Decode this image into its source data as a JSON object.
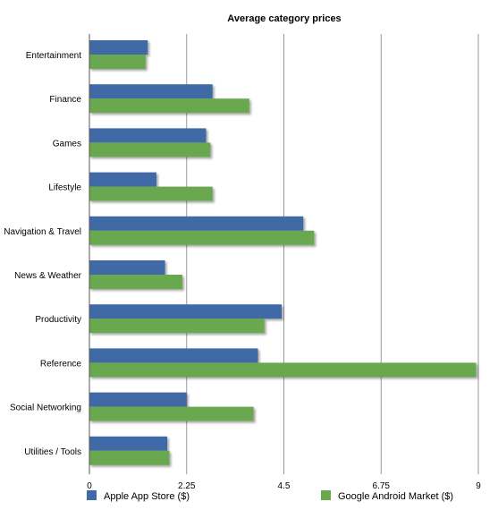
{
  "chart_data": {
    "type": "bar",
    "orientation": "horizontal",
    "title": "Average category prices",
    "xlabel": "",
    "ylabel": "",
    "categories": [
      "Entertainment",
      "Finance",
      "Games",
      "Lifestyle",
      "Navigation & Travel",
      "News & Weather",
      "Productivity",
      "Reference",
      "Social Networking",
      "Utilities / Tools"
    ],
    "series": [
      {
        "name": "Apple App Store ($)",
        "color": "#3f6aa6",
        "values": [
          1.35,
          2.85,
          2.7,
          1.55,
          4.95,
          1.75,
          4.45,
          3.9,
          2.25,
          1.8
        ]
      },
      {
        "name": "Google Android Market ($)",
        "color": "#6aa84f",
        "values": [
          1.3,
          3.7,
          2.8,
          2.85,
          5.2,
          2.15,
          4.05,
          8.95,
          3.8,
          1.85
        ]
      }
    ],
    "x_ticks": [
      "0",
      "2.25",
      "4.5",
      "6.75",
      "9"
    ],
    "xlim": [
      0,
      9
    ],
    "grid": "vertical",
    "legend_position": "bottom"
  }
}
